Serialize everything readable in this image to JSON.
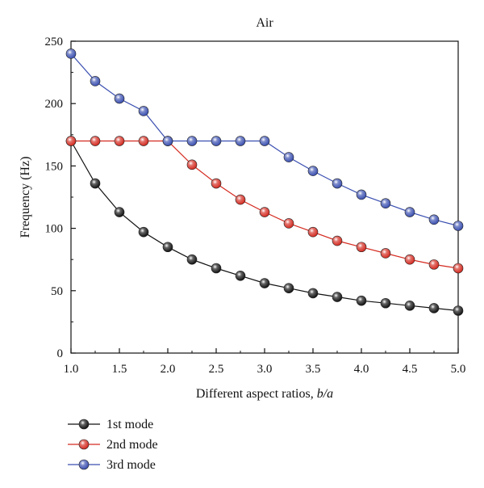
{
  "chart_data": {
    "type": "line",
    "title": "Air",
    "xlabel_prefix": "Different aspect ratios, ",
    "xlabel_var": "b/a",
    "ylabel": "Frequency (Hz)",
    "xlim": [
      1.0,
      5.0
    ],
    "ylim": [
      0,
      250
    ],
    "xticks": [
      "1.0",
      "1.5",
      "2.0",
      "2.5",
      "3.0",
      "3.5",
      "4.0",
      "4.5",
      "5.0"
    ],
    "yticks": [
      "0",
      "50",
      "100",
      "150",
      "200",
      "250"
    ],
    "grid": false,
    "legend_position": "bottom-left",
    "x": [
      1.0,
      1.25,
      1.5,
      1.75,
      2.0,
      2.25,
      2.5,
      2.75,
      3.0,
      3.25,
      3.5,
      3.75,
      4.0,
      4.25,
      4.5,
      4.75,
      5.0
    ],
    "series": [
      {
        "name": "1st mode",
        "color": "#111111",
        "values": [
          170,
          136,
          113,
          97,
          85,
          75,
          68,
          62,
          56,
          52,
          48,
          45,
          42,
          40,
          38,
          36,
          34
        ]
      },
      {
        "name": "2nd mode",
        "color": "#d42a20",
        "values": [
          170,
          170,
          170,
          170,
          170,
          151,
          136,
          123,
          113,
          104,
          97,
          90,
          85,
          80,
          75,
          71,
          68
        ]
      },
      {
        "name": "3rd mode",
        "color": "#3a4fb0",
        "values": [
          240,
          218,
          204,
          194,
          170,
          170,
          170,
          170,
          170,
          157,
          146,
          136,
          127,
          120,
          113,
          107,
          102
        ]
      }
    ]
  }
}
